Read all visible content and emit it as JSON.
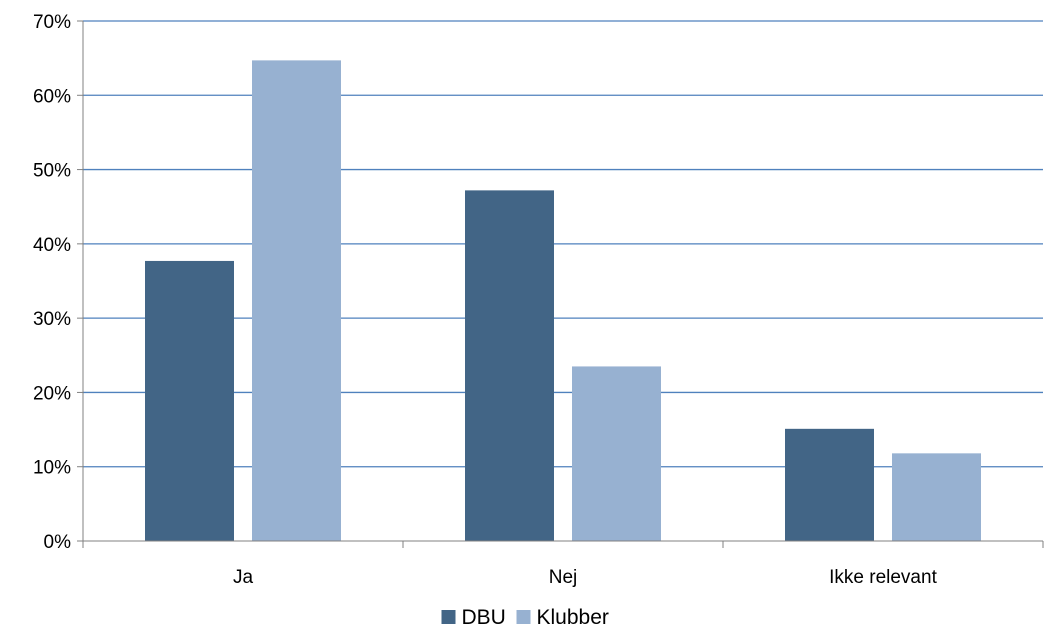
{
  "chart_data": {
    "type": "bar",
    "categories": [
      "Ja",
      "Nej",
      "Ikke relevant"
    ],
    "series": [
      {
        "name": "DBU",
        "values": [
          37.7,
          47.2,
          15.1
        ],
        "color": "#426586"
      },
      {
        "name": "Klubber",
        "values": [
          64.7,
          23.5,
          11.8
        ],
        "color": "#97b1d1"
      }
    ],
    "ylim": [
      0,
      70
    ],
    "yticks": [
      0,
      10,
      20,
      30,
      40,
      50,
      60,
      70
    ],
    "ytick_labels": [
      "0%",
      "10%",
      "20%",
      "30%",
      "40%",
      "50%",
      "60%",
      "70%"
    ],
    "grid": true,
    "grid_color": "#4f81bd",
    "legend_position": "bottom",
    "title": "",
    "xlabel": "",
    "ylabel": ""
  }
}
